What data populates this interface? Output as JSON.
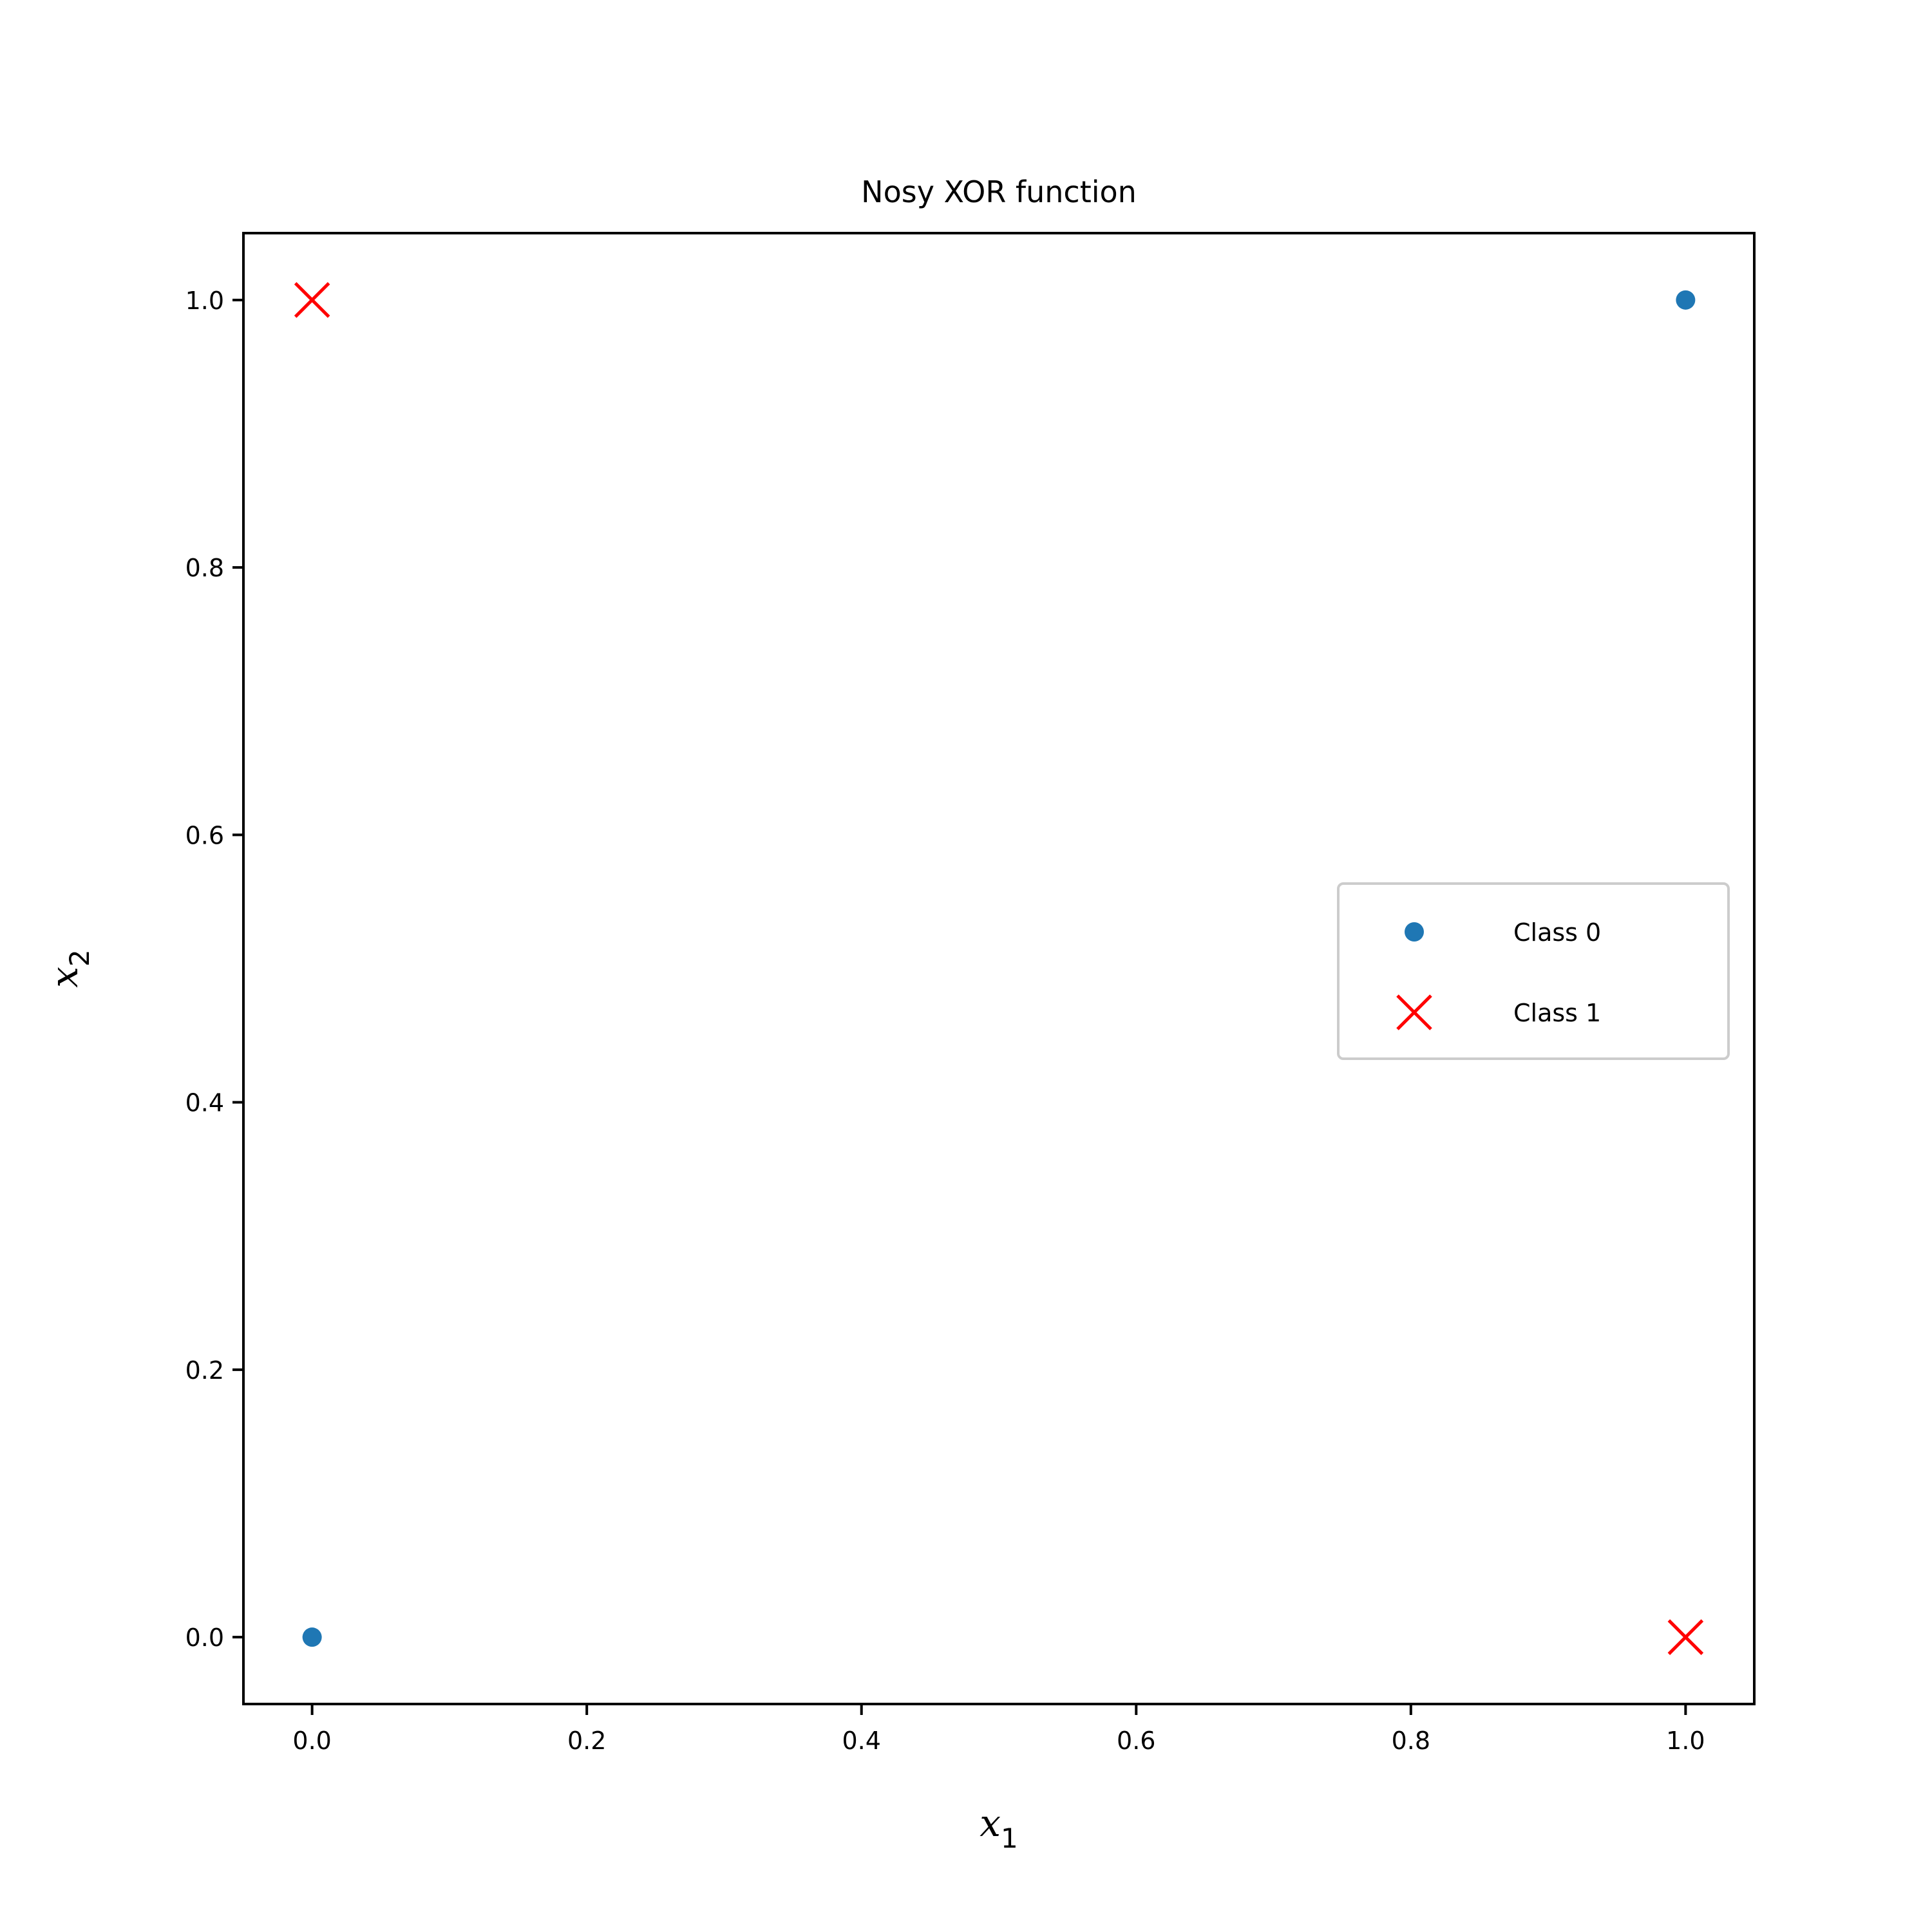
{
  "chart_data": {
    "type": "scatter",
    "title": "Nosy XOR function",
    "xlabel": {
      "base": "x",
      "sub": "1"
    },
    "ylabel": {
      "base": "x",
      "sub": "2"
    },
    "xlim": [
      -0.05,
      1.05
    ],
    "ylim": [
      -0.05,
      1.05
    ],
    "xticks": [
      0.0,
      0.2,
      0.4,
      0.6,
      0.8,
      1.0
    ],
    "xtick_labels": [
      "0.0",
      "0.2",
      "0.4",
      "0.6",
      "0.8",
      "1.0"
    ],
    "yticks": [
      0.0,
      0.2,
      0.4,
      0.6,
      0.8,
      1.0
    ],
    "ytick_labels": [
      "0.0",
      "0.2",
      "0.4",
      "0.6",
      "0.8",
      "1.0"
    ],
    "grid": false,
    "legend_position": "center-right",
    "series": [
      {
        "name": "Class 0",
        "marker": "dot",
        "color": "#1f77b4",
        "points": [
          {
            "x": 0.0,
            "y": 0.0
          },
          {
            "x": 1.0,
            "y": 1.0
          }
        ]
      },
      {
        "name": "Class 1",
        "marker": "x",
        "color": "#ff0000",
        "points": [
          {
            "x": 0.0,
            "y": 1.0
          },
          {
            "x": 1.0,
            "y": 0.0
          }
        ]
      }
    ]
  }
}
